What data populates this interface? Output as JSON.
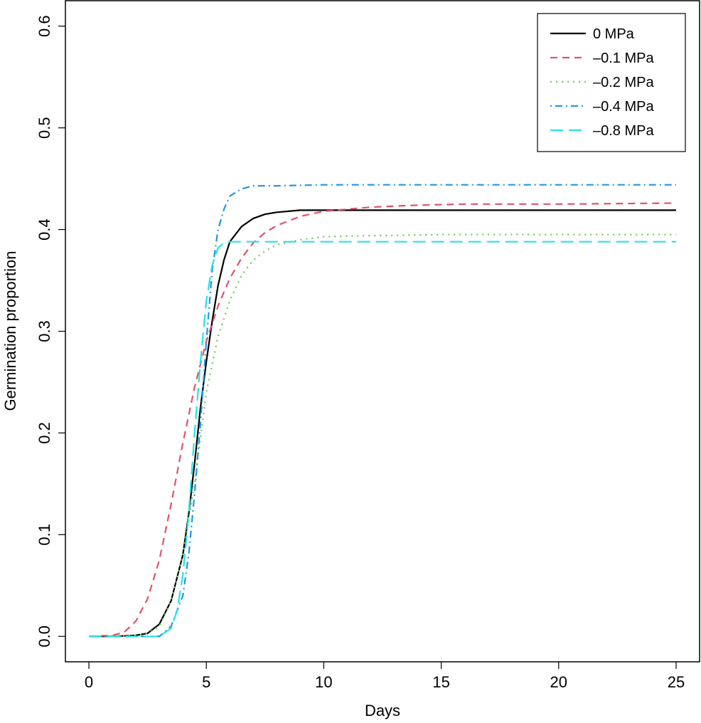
{
  "chart_data": {
    "type": "line",
    "xlabel": "Days",
    "ylabel": "Germination proportion",
    "xlim": [
      -1,
      26
    ],
    "ylim": [
      -0.025,
      0.625
    ],
    "xticks": [
      0,
      5,
      10,
      15,
      20,
      25
    ],
    "yticks": [
      0.0,
      0.1,
      0.2,
      0.3,
      0.4,
      0.5,
      0.6
    ],
    "xtick_labels": [
      "0",
      "5",
      "10",
      "15",
      "20",
      "25"
    ],
    "ytick_labels": [
      "0.0",
      "0.1",
      "0.2",
      "0.3",
      "0.4",
      "0.5",
      "0.6"
    ],
    "grid": false,
    "legend_position": "top-right",
    "series": [
      {
        "name": "0 MPa",
        "color": "#000000",
        "dash": "solid",
        "x": [
          0,
          1,
          2,
          2.5,
          3,
          3.5,
          4,
          4.25,
          4.5,
          4.75,
          5,
          5.25,
          5.5,
          5.75,
          6,
          6.5,
          7,
          7.5,
          8,
          9,
          10,
          12,
          15,
          20,
          25
        ],
        "y": [
          0,
          0,
          0.001,
          0.003,
          0.012,
          0.035,
          0.08,
          0.12,
          0.17,
          0.225,
          0.27,
          0.31,
          0.345,
          0.37,
          0.388,
          0.403,
          0.411,
          0.415,
          0.417,
          0.419,
          0.419,
          0.419,
          0.419,
          0.419,
          0.419
        ]
      },
      {
        "name": "–0.1 MPa",
        "color": "#df536b",
        "dash": "dashed",
        "x": [
          0,
          1,
          1.5,
          2,
          2.5,
          3,
          3.5,
          4,
          4.5,
          5,
          5.5,
          6,
          6.5,
          7,
          7.5,
          8,
          9,
          10,
          11,
          12,
          14,
          16,
          20,
          25
        ],
        "y": [
          0,
          0.001,
          0.004,
          0.015,
          0.037,
          0.075,
          0.13,
          0.19,
          0.245,
          0.29,
          0.325,
          0.352,
          0.372,
          0.387,
          0.397,
          0.404,
          0.413,
          0.418,
          0.42,
          0.422,
          0.424,
          0.425,
          0.425,
          0.426
        ]
      },
      {
        "name": "–0.2 MPa",
        "color": "#61d04f",
        "dash": "dotted",
        "x": [
          0,
          2,
          2.5,
          3,
          3.5,
          4,
          4.5,
          5,
          5.5,
          6,
          6.5,
          7,
          7.5,
          8,
          9,
          10,
          12,
          15,
          20,
          25
        ],
        "y": [
          0,
          0.001,
          0.003,
          0.01,
          0.035,
          0.08,
          0.15,
          0.24,
          0.295,
          0.33,
          0.355,
          0.37,
          0.379,
          0.385,
          0.39,
          0.393,
          0.394,
          0.395,
          0.395,
          0.395
        ]
      },
      {
        "name": "–0.4 MPa",
        "color": "#2297e6",
        "dash": "dotdash",
        "x": [
          0,
          3,
          3.5,
          4,
          4.25,
          4.5,
          4.75,
          5,
          5.25,
          5.5,
          5.75,
          6,
          6.5,
          7,
          8,
          10,
          15,
          20,
          25
        ],
        "y": [
          0,
          0,
          0.01,
          0.04,
          0.08,
          0.14,
          0.21,
          0.29,
          0.36,
          0.4,
          0.42,
          0.433,
          0.44,
          0.443,
          0.443,
          0.444,
          0.444,
          0.444,
          0.444
        ]
      },
      {
        "name": "–0.8 MPa",
        "color": "#28e2e5",
        "dash": "longdash",
        "x": [
          0,
          3,
          3.5,
          3.75,
          4,
          4.25,
          4.5,
          4.75,
          5,
          5.25,
          5.5,
          5.75,
          6,
          7,
          10,
          15,
          20,
          25
        ],
        "y": [
          0,
          0,
          0.008,
          0.025,
          0.06,
          0.12,
          0.2,
          0.27,
          0.33,
          0.365,
          0.382,
          0.387,
          0.388,
          0.388,
          0.388,
          0.388,
          0.388,
          0.388
        ]
      }
    ]
  }
}
